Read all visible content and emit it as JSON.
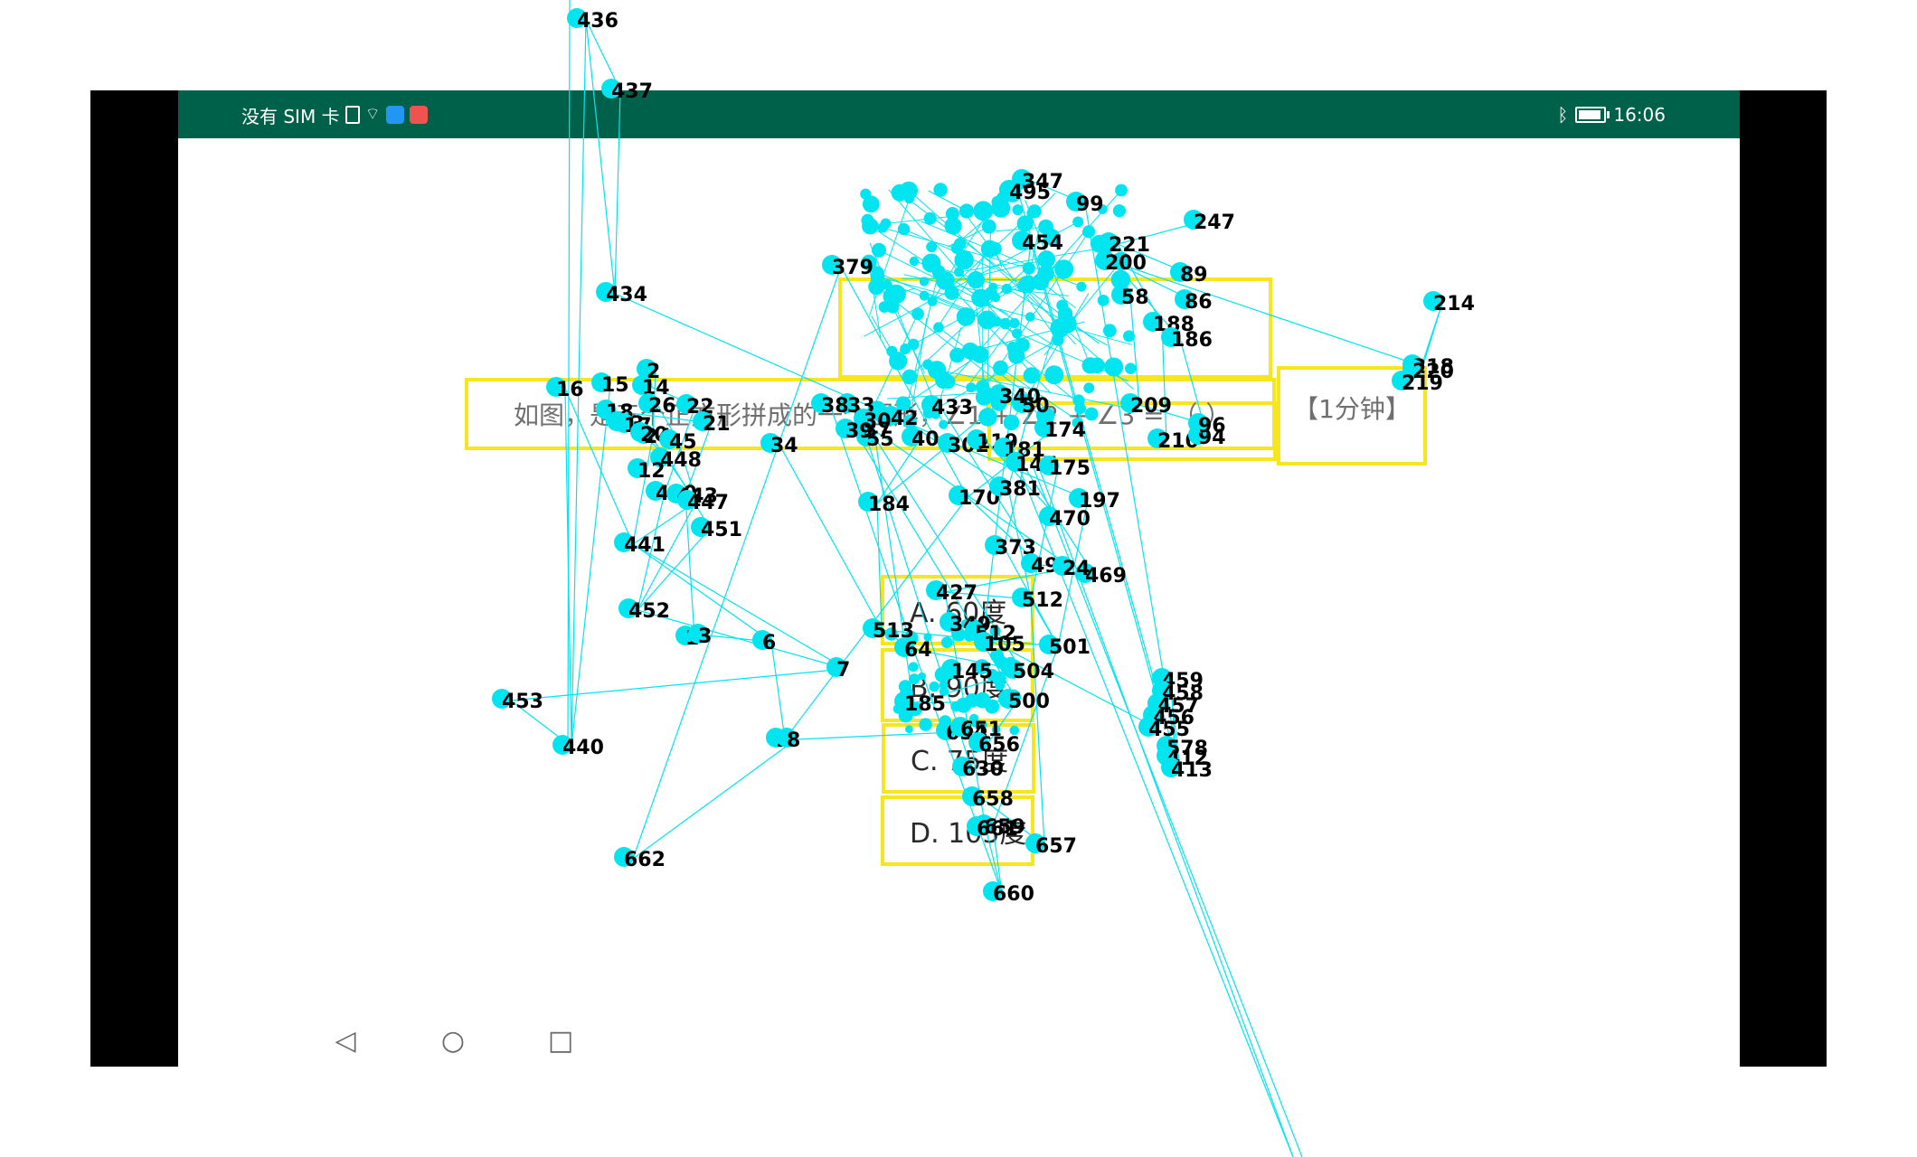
{
  "statusbar": {
    "carrier": "没有 SIM 卡",
    "time": "16:06"
  },
  "question": {
    "text": "如图，是三个正方形拼成的一个图形，∠1 + ∠2 + ∠3 = （ ）",
    "timer": "【1分钟】"
  },
  "options": {
    "a": "A. 60度",
    "b": "B. 90度",
    "c": "C. 75度",
    "d": "D. 105度"
  },
  "colors": {
    "status_bar": "#00614a",
    "highlight_box": "#f5e61f",
    "overlay_cyan": "#00e5ef"
  },
  "overlay_labels": [
    "436",
    "437",
    "434",
    "16",
    "15",
    "2",
    "14",
    "18",
    "13",
    "26",
    "17",
    "24",
    "22",
    "21",
    "20",
    "45",
    "448",
    "12",
    "450",
    "443",
    "447",
    "451",
    "441",
    "452",
    "1",
    "3",
    "6",
    "7",
    "453",
    "440",
    "9",
    "8",
    "662",
    "379",
    "170",
    "184",
    "381",
    "197",
    "470",
    "469",
    "373",
    "499",
    "24",
    "427",
    "512",
    "501",
    "513",
    "64",
    "504",
    "185",
    "500",
    "654",
    "651",
    "656",
    "630",
    "658",
    "659",
    "661",
    "657",
    "660",
    "433",
    "42",
    "40",
    "55",
    "37",
    "34",
    "33",
    "38",
    "30",
    "39",
    "302",
    "119",
    "181",
    "147",
    "175",
    "174",
    "50",
    "340",
    "247",
    "89",
    "86",
    "214",
    "218",
    "220",
    "219",
    "221",
    "200",
    "58",
    "188",
    "186",
    "209",
    "210",
    "94",
    "96",
    "99",
    "347",
    "495",
    "578",
    "412",
    "413",
    "459",
    "458",
    "457",
    "456",
    "455",
    "454",
    "349",
    "512",
    "105",
    "145",
    "133",
    "114"
  ]
}
